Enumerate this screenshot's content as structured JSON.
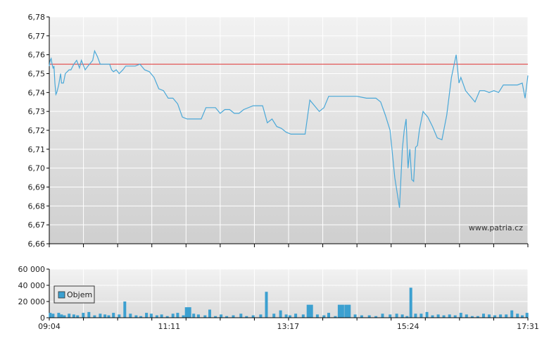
{
  "watermark": "www.patria.cz",
  "colors": {
    "price_line": "#4aa8d8",
    "reference_line": "#e03030",
    "volume_bar": "#3ca0d0",
    "bg_top": "#f2f2f2",
    "bg_bottom": "#cfcfcf",
    "grid": "#ffffff",
    "axis": "#000000"
  },
  "chart_data": [
    {
      "type": "line",
      "title": "",
      "xlabel": "",
      "ylabel": "",
      "ylim": [
        6.66,
        6.78
      ],
      "y_ticks": [
        "6,66",
        "6,67",
        "6,68",
        "6,69",
        "6,70",
        "6,71",
        "6,72",
        "6,73",
        "6,74",
        "6,75",
        "6,76",
        "6,77",
        "6,78"
      ],
      "x_ticks": [
        "09:04",
        "11:11",
        "13:17",
        "15:24",
        "17:31"
      ],
      "xlim": [
        "09:04",
        "17:31"
      ],
      "grid": true,
      "reference_line": 6.755,
      "series": [
        {
          "name": "",
          "x": [
            "09:04",
            "09:05",
            "09:06",
            "09:07",
            "09:08",
            "09:09",
            "09:10",
            "09:11",
            "09:12",
            "09:14",
            "09:16",
            "09:17",
            "09:19",
            "09:21",
            "09:25",
            "09:27",
            "09:30",
            "09:33",
            "09:36",
            "09:38",
            "09:42",
            "09:45",
            "09:50",
            "09:52",
            "09:55",
            "09:58",
            "10:00",
            "10:02",
            "10:05",
            "10:08",
            "10:10",
            "10:12",
            "10:15",
            "10:18",
            "10:22",
            "10:25",
            "10:30",
            "10:35",
            "10:40",
            "10:45",
            "10:50",
            "10:55",
            "11:00",
            "11:05",
            "11:10",
            "11:15",
            "11:20",
            "11:25",
            "11:30",
            "11:35",
            "11:40",
            "11:45",
            "11:50",
            "11:55",
            "12:00",
            "12:05",
            "12:10",
            "12:15",
            "12:20",
            "12:25",
            "12:30",
            "12:40",
            "12:45",
            "12:50",
            "12:55",
            "13:00",
            "13:05",
            "13:10",
            "13:15",
            "13:20",
            "13:25",
            "13:30",
            "13:35",
            "13:40",
            "13:50",
            "13:55",
            "14:00",
            "14:05",
            "14:10",
            "14:15",
            "14:20",
            "14:30",
            "14:40",
            "14:50",
            "14:55",
            "15:00",
            "15:05",
            "15:10",
            "15:15",
            "15:18",
            "15:20",
            "15:22",
            "15:24",
            "15:26",
            "15:28",
            "15:30",
            "15:32",
            "15:34",
            "15:36",
            "15:38",
            "15:40",
            "15:45",
            "15:50",
            "15:55",
            "16:00",
            "16:05",
            "16:10",
            "16:15",
            "16:18",
            "16:20",
            "16:25",
            "16:30",
            "16:35",
            "16:40",
            "16:45",
            "16:50",
            "16:55",
            "17:00",
            "17:05",
            "17:10",
            "17:15",
            "17:20",
            "17:25",
            "17:28",
            "17:31"
          ],
          "values": [
            6.754,
            6.757,
            6.758,
            6.755,
            6.753,
            6.754,
            6.745,
            6.739,
            6.74,
            6.744,
            6.75,
            6.745,
            6.745,
            6.75,
            6.752,
            6.752,
            6.755,
            6.757,
            6.753,
            6.757,
            6.752,
            6.754,
            6.757,
            6.762,
            6.759,
            6.755,
            6.755,
            6.755,
            6.755,
            6.755,
            6.752,
            6.751,
            6.752,
            6.75,
            6.752,
            6.754,
            6.754,
            6.754,
            6.755,
            6.752,
            6.751,
            6.748,
            6.742,
            6.741,
            6.737,
            6.737,
            6.734,
            6.727,
            6.726,
            6.726,
            6.726,
            6.726,
            6.732,
            6.732,
            6.732,
            6.729,
            6.731,
            6.731,
            6.729,
            6.729,
            6.731,
            6.733,
            6.733,
            6.733,
            6.724,
            6.726,
            6.722,
            6.721,
            6.719,
            6.718,
            6.718,
            6.718,
            6.718,
            6.736,
            6.73,
            6.732,
            6.738,
            6.738,
            6.738,
            6.738,
            6.738,
            6.738,
            6.737,
            6.737,
            6.735,
            6.728,
            6.72,
            6.695,
            6.679,
            6.71,
            6.72,
            6.726,
            6.7,
            6.71,
            6.694,
            6.693,
            6.711,
            6.712,
            6.72,
            6.725,
            6.73,
            6.727,
            6.722,
            6.716,
            6.715,
            6.728,
            6.748,
            6.76,
            6.745,
            6.748,
            6.741,
            6.738,
            6.735,
            6.741,
            6.741,
            6.74,
            6.741,
            6.74,
            6.744,
            6.744,
            6.744,
            6.744,
            6.745,
            6.737,
            6.749
          ]
        }
      ]
    },
    {
      "type": "bar",
      "title": "",
      "xlabel": "",
      "ylabel": "",
      "ylim": [
        0,
        60000
      ],
      "y_ticks": [
        "0",
        "20 000",
        "40 000",
        "60 000"
      ],
      "x_ticks": [
        "09:04",
        "11:11",
        "13:17",
        "15:24",
        "17:31"
      ],
      "legend": {
        "label": "Objem",
        "position": "top-left"
      },
      "series": [
        {
          "name": "Objem",
          "x": [
            "09:05",
            "09:08",
            "09:14",
            "09:17",
            "09:20",
            "09:25",
            "09:30",
            "09:34",
            "09:40",
            "09:46",
            "09:52",
            "09:58",
            "10:03",
            "10:07",
            "10:12",
            "10:18",
            "10:24",
            "10:30",
            "10:36",
            "10:41",
            "10:47",
            "10:52",
            "10:58",
            "11:03",
            "11:09",
            "11:15",
            "11:20",
            "11:26",
            "11:31",
            "11:37",
            "11:42",
            "11:49",
            "11:54",
            "12:00",
            "12:06",
            "12:12",
            "12:19",
            "12:27",
            "12:33",
            "12:40",
            "12:48",
            "12:54",
            "13:02",
            "13:09",
            "13:15",
            "13:19",
            "13:25",
            "13:33",
            "13:40",
            "13:48",
            "13:55",
            "14:00",
            "14:07",
            "14:13",
            "14:20",
            "14:28",
            "14:35",
            "14:43",
            "14:50",
            "14:57",
            "15:05",
            "15:12",
            "15:18",
            "15:23",
            "15:27",
            "15:32",
            "15:38",
            "15:44",
            "15:50",
            "15:56",
            "16:02",
            "16:08",
            "16:14",
            "16:20",
            "16:26",
            "16:32",
            "16:38",
            "16:44",
            "16:50",
            "16:56",
            "17:02",
            "17:08",
            "17:14",
            "17:20",
            "17:25",
            "17:30"
          ],
          "values": [
            6000,
            5000,
            6000,
            4000,
            3000,
            5000,
            4000,
            3000,
            6000,
            7000,
            3000,
            5000,
            4000,
            3000,
            6000,
            4000,
            20000,
            5000,
            3000,
            2000,
            6000,
            5000,
            3000,
            4000,
            2000,
            5000,
            6000,
            3000,
            13000,
            5000,
            4000,
            3000,
            10000,
            2000,
            4000,
            2000,
            3000,
            5000,
            2000,
            3000,
            4000,
            32000,
            5000,
            9000,
            4000,
            3000,
            5000,
            4000,
            16000,
            4000,
            3000,
            6000,
            2000,
            16000,
            16000,
            4000,
            3000,
            3000,
            2000,
            5000,
            4000,
            5000,
            4000,
            2000,
            37000,
            5000,
            5000,
            7000,
            3000,
            4000,
            3000,
            4000,
            3000,
            6000,
            4000,
            2000,
            2000,
            5000,
            4000,
            3000,
            4000,
            4000,
            9000,
            5000,
            3000,
            6000
          ]
        }
      ]
    }
  ]
}
